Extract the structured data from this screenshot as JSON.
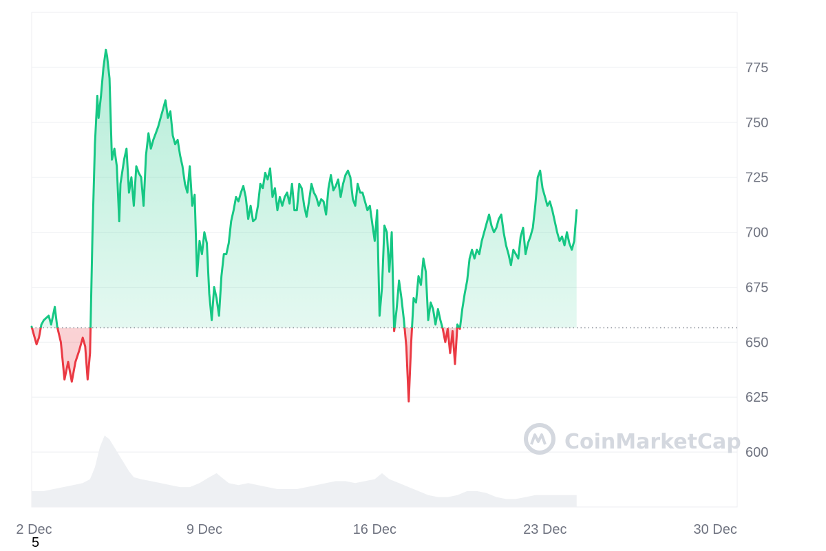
{
  "footnote": "5",
  "watermark": "CoinMarketCap",
  "chart_data": {
    "type": "line",
    "title": "",
    "xlabel": "",
    "ylabel": "",
    "ylim": [
      575,
      800
    ],
    "y_ticks": [
      600,
      625,
      650,
      675,
      700,
      725,
      750,
      775
    ],
    "x_range": [
      1.9,
      30.9
    ],
    "x_ticks": [
      {
        "x": 2,
        "label": "2 Dec"
      },
      {
        "x": 9,
        "label": "9 Dec"
      },
      {
        "x": 16,
        "label": "16 Dec"
      },
      {
        "x": 23,
        "label": "23 Dec"
      },
      {
        "x": 30,
        "label": "30 Dec"
      }
    ],
    "baseline": 656.5,
    "y_axis_position": "right",
    "grid": true,
    "colors": {
      "above": "#16c784",
      "below": "#ea3943",
      "grid": "#eceef1",
      "volume": "#eef0f3",
      "baseline": "#8a8f99"
    },
    "series": [
      {
        "values": [
          [
            1.9,
            657
          ],
          [
            2.0,
            653
          ],
          [
            2.1,
            649
          ],
          [
            2.2,
            652
          ],
          [
            2.3,
            658
          ],
          [
            2.4,
            660
          ],
          [
            2.6,
            662
          ],
          [
            2.7,
            658
          ],
          [
            2.85,
            666
          ],
          [
            2.95,
            657
          ],
          [
            3.1,
            650
          ],
          [
            3.25,
            633
          ],
          [
            3.4,
            641
          ],
          [
            3.55,
            632
          ],
          [
            3.7,
            641
          ],
          [
            3.85,
            646
          ],
          [
            4.0,
            652
          ],
          [
            4.1,
            648
          ],
          [
            4.2,
            633
          ],
          [
            4.3,
            645
          ],
          [
            4.4,
            700
          ],
          [
            4.5,
            740
          ],
          [
            4.6,
            762
          ],
          [
            4.65,
            752
          ],
          [
            4.75,
            762
          ],
          [
            4.85,
            775
          ],
          [
            4.95,
            783
          ],
          [
            5.0,
            780
          ],
          [
            5.1,
            770
          ],
          [
            5.2,
            733
          ],
          [
            5.3,
            738
          ],
          [
            5.4,
            730
          ],
          [
            5.5,
            705
          ],
          [
            5.55,
            722
          ],
          [
            5.7,
            733
          ],
          [
            5.8,
            738
          ],
          [
            5.9,
            718
          ],
          [
            6.0,
            725
          ],
          [
            6.1,
            712
          ],
          [
            6.2,
            730
          ],
          [
            6.3,
            727
          ],
          [
            6.4,
            725
          ],
          [
            6.5,
            712
          ],
          [
            6.6,
            735
          ],
          [
            6.7,
            745
          ],
          [
            6.8,
            738
          ],
          [
            6.9,
            742
          ],
          [
            7.0,
            745
          ],
          [
            7.1,
            748
          ],
          [
            7.2,
            752
          ],
          [
            7.3,
            756
          ],
          [
            7.4,
            760
          ],
          [
            7.5,
            752
          ],
          [
            7.6,
            755
          ],
          [
            7.7,
            744
          ],
          [
            7.8,
            740
          ],
          [
            7.9,
            742
          ],
          [
            8.0,
            735
          ],
          [
            8.1,
            730
          ],
          [
            8.2,
            722
          ],
          [
            8.3,
            718
          ],
          [
            8.4,
            730
          ],
          [
            8.5,
            712
          ],
          [
            8.6,
            717
          ],
          [
            8.7,
            680
          ],
          [
            8.8,
            696
          ],
          [
            8.9,
            690
          ],
          [
            9.0,
            700
          ],
          [
            9.1,
            695
          ],
          [
            9.2,
            672
          ],
          [
            9.3,
            660
          ],
          [
            9.4,
            675
          ],
          [
            9.5,
            670
          ],
          [
            9.6,
            662
          ],
          [
            9.7,
            680
          ],
          [
            9.8,
            690
          ],
          [
            9.9,
            690
          ],
          [
            10.0,
            695
          ],
          [
            10.1,
            705
          ],
          [
            10.2,
            710
          ],
          [
            10.3,
            716
          ],
          [
            10.4,
            714
          ],
          [
            10.5,
            718
          ],
          [
            10.6,
            721
          ],
          [
            10.7,
            716
          ],
          [
            10.8,
            706
          ],
          [
            10.9,
            712
          ],
          [
            11.0,
            705
          ],
          [
            11.1,
            706
          ],
          [
            11.2,
            712
          ],
          [
            11.3,
            722
          ],
          [
            11.4,
            720
          ],
          [
            11.5,
            727
          ],
          [
            11.6,
            724
          ],
          [
            11.7,
            729
          ],
          [
            11.8,
            716
          ],
          [
            11.9,
            720
          ],
          [
            12.0,
            710
          ],
          [
            12.1,
            716
          ],
          [
            12.2,
            712
          ],
          [
            12.3,
            716
          ],
          [
            12.4,
            718
          ],
          [
            12.5,
            713
          ],
          [
            12.6,
            722
          ],
          [
            12.7,
            710
          ],
          [
            12.8,
            710
          ],
          [
            12.9,
            722
          ],
          [
            13.0,
            720
          ],
          [
            13.1,
            712
          ],
          [
            13.2,
            707
          ],
          [
            13.3,
            714
          ],
          [
            13.4,
            722
          ],
          [
            13.5,
            718
          ],
          [
            13.6,
            716
          ],
          [
            13.7,
            712
          ],
          [
            13.8,
            715
          ],
          [
            13.9,
            714
          ],
          [
            14.0,
            708
          ],
          [
            14.1,
            720
          ],
          [
            14.2,
            726
          ],
          [
            14.3,
            719
          ],
          [
            14.4,
            721
          ],
          [
            14.5,
            724
          ],
          [
            14.6,
            716
          ],
          [
            14.7,
            722
          ],
          [
            14.8,
            726
          ],
          [
            14.9,
            728
          ],
          [
            15.0,
            725
          ],
          [
            15.1,
            715
          ],
          [
            15.2,
            712
          ],
          [
            15.3,
            722
          ],
          [
            15.4,
            718
          ],
          [
            15.5,
            718
          ],
          [
            15.6,
            714
          ],
          [
            15.7,
            710
          ],
          [
            15.8,
            712
          ],
          [
            15.9,
            704
          ],
          [
            16.0,
            696
          ],
          [
            16.1,
            710
          ],
          [
            16.2,
            662
          ],
          [
            16.3,
            675
          ],
          [
            16.4,
            703
          ],
          [
            16.5,
            700
          ],
          [
            16.6,
            682
          ],
          [
            16.7,
            700
          ],
          [
            16.8,
            655
          ],
          [
            16.9,
            665
          ],
          [
            17.0,
            678
          ],
          [
            17.1,
            670
          ],
          [
            17.2,
            660
          ],
          [
            17.3,
            648
          ],
          [
            17.4,
            623
          ],
          [
            17.5,
            650
          ],
          [
            17.6,
            670
          ],
          [
            17.7,
            668
          ],
          [
            17.8,
            680
          ],
          [
            17.9,
            676
          ],
          [
            18.0,
            688
          ],
          [
            18.1,
            682
          ],
          [
            18.2,
            660
          ],
          [
            18.3,
            668
          ],
          [
            18.4,
            665
          ],
          [
            18.5,
            658
          ],
          [
            18.6,
            665
          ],
          [
            18.7,
            660
          ],
          [
            18.8,
            656
          ],
          [
            18.9,
            650
          ],
          [
            19.0,
            656
          ],
          [
            19.1,
            645
          ],
          [
            19.2,
            655
          ],
          [
            19.3,
            640
          ],
          [
            19.4,
            658
          ],
          [
            19.5,
            656
          ],
          [
            19.6,
            665
          ],
          [
            19.7,
            672
          ],
          [
            19.8,
            678
          ],
          [
            19.9,
            688
          ],
          [
            20.0,
            692
          ],
          [
            20.1,
            688
          ],
          [
            20.2,
            692
          ],
          [
            20.3,
            690
          ],
          [
            20.4,
            696
          ],
          [
            20.5,
            700
          ],
          [
            20.6,
            704
          ],
          [
            20.7,
            708
          ],
          [
            20.8,
            703
          ],
          [
            20.9,
            700
          ],
          [
            21.0,
            702
          ],
          [
            21.1,
            706
          ],
          [
            21.2,
            708
          ],
          [
            21.3,
            700
          ],
          [
            21.4,
            694
          ],
          [
            21.5,
            690
          ],
          [
            21.6,
            685
          ],
          [
            21.7,
            692
          ],
          [
            21.8,
            690
          ],
          [
            21.9,
            688
          ],
          [
            22.0,
            698
          ],
          [
            22.1,
            702
          ],
          [
            22.2,
            690
          ],
          [
            22.3,
            695
          ],
          [
            22.4,
            698
          ],
          [
            22.5,
            702
          ],
          [
            22.6,
            712
          ],
          [
            22.7,
            725
          ],
          [
            22.8,
            728
          ],
          [
            22.9,
            720
          ],
          [
            23.0,
            716
          ],
          [
            23.1,
            712
          ],
          [
            23.2,
            714
          ],
          [
            23.3,
            710
          ],
          [
            23.4,
            705
          ],
          [
            23.5,
            700
          ],
          [
            23.6,
            696
          ],
          [
            23.7,
            698
          ],
          [
            23.8,
            694
          ],
          [
            23.9,
            700
          ],
          [
            24.0,
            695
          ],
          [
            24.1,
            692
          ],
          [
            24.2,
            696
          ],
          [
            24.3,
            710
          ]
        ]
      }
    ],
    "volume": [
      [
        1.9,
        8
      ],
      [
        2.4,
        8
      ],
      [
        2.8,
        9
      ],
      [
        3.2,
        10
      ],
      [
        3.6,
        11
      ],
      [
        4.0,
        12
      ],
      [
        4.3,
        14
      ],
      [
        4.5,
        20
      ],
      [
        4.7,
        30
      ],
      [
        4.9,
        36
      ],
      [
        5.1,
        34
      ],
      [
        5.3,
        30
      ],
      [
        5.5,
        26
      ],
      [
        5.7,
        22
      ],
      [
        5.9,
        18
      ],
      [
        6.1,
        15
      ],
      [
        6.4,
        14
      ],
      [
        6.8,
        13
      ],
      [
        7.2,
        12
      ],
      [
        7.6,
        11
      ],
      [
        8.0,
        10
      ],
      [
        8.4,
        10
      ],
      [
        8.8,
        12
      ],
      [
        9.2,
        15
      ],
      [
        9.5,
        17
      ],
      [
        9.7,
        15
      ],
      [
        10.0,
        12
      ],
      [
        10.4,
        11
      ],
      [
        10.8,
        12
      ],
      [
        11.2,
        11
      ],
      [
        11.6,
        10
      ],
      [
        12.0,
        9
      ],
      [
        12.4,
        9
      ],
      [
        12.8,
        9
      ],
      [
        13.2,
        10
      ],
      [
        13.6,
        11
      ],
      [
        14.0,
        12
      ],
      [
        14.4,
        13
      ],
      [
        14.8,
        13
      ],
      [
        15.2,
        12
      ],
      [
        15.6,
        13
      ],
      [
        16.0,
        14
      ],
      [
        16.3,
        17
      ],
      [
        16.6,
        14
      ],
      [
        17.0,
        12
      ],
      [
        17.4,
        10
      ],
      [
        17.8,
        8
      ],
      [
        18.2,
        6
      ],
      [
        18.6,
        5
      ],
      [
        19.0,
        5
      ],
      [
        19.4,
        6
      ],
      [
        19.8,
        8
      ],
      [
        20.2,
        8
      ],
      [
        20.6,
        7
      ],
      [
        21.0,
        5
      ],
      [
        21.4,
        4
      ],
      [
        21.8,
        4
      ],
      [
        22.2,
        5
      ],
      [
        22.6,
        6
      ],
      [
        23.0,
        6
      ],
      [
        23.4,
        6
      ],
      [
        23.8,
        6
      ],
      [
        24.3,
        6
      ]
    ]
  }
}
